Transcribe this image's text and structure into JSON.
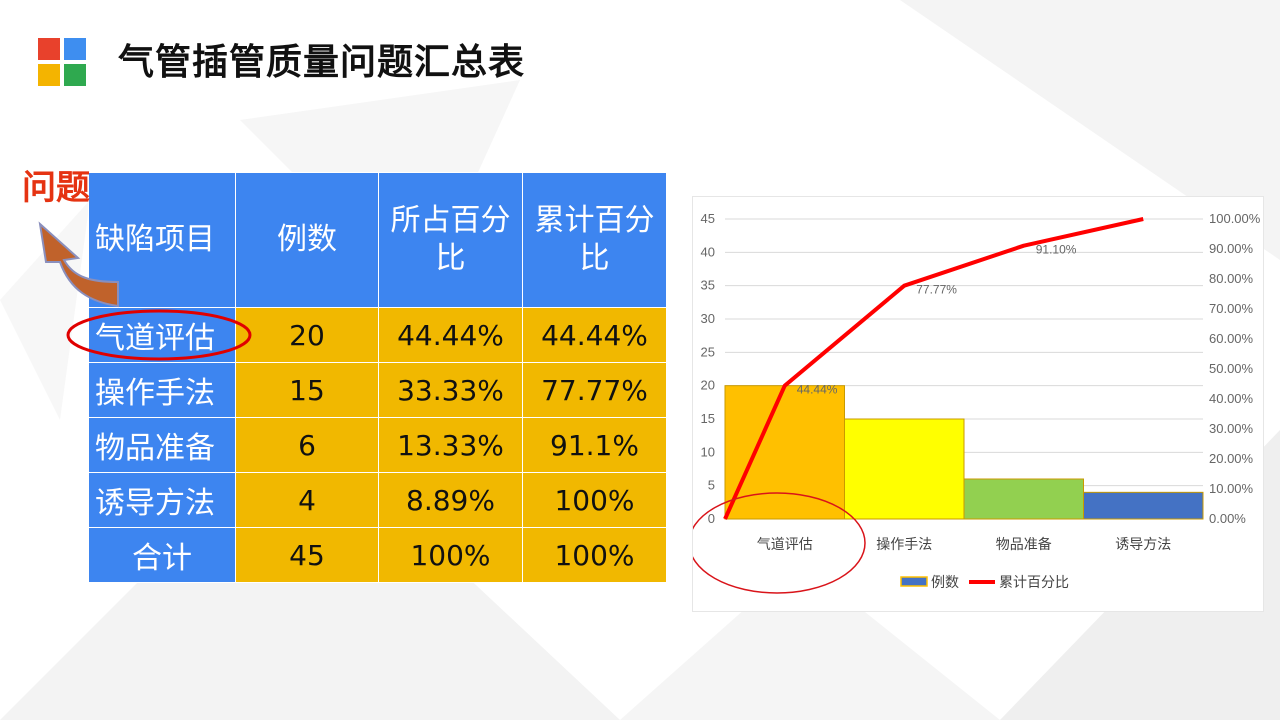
{
  "slide": {
    "title": "气管插管质量问题汇总表",
    "logo_colors": [
      "#e8412c",
      "#3e8ef0",
      "#f4b400",
      "#2fa94f"
    ],
    "problem_label": "问题",
    "accent_color": "#e53312"
  },
  "table": {
    "headers": [
      "缺陷项目",
      "例数",
      "所占百分比",
      "累计百分比"
    ],
    "rows": [
      [
        "气道评估",
        "20",
        "44.44%",
        "44.44%"
      ],
      [
        "操作手法",
        "15",
        "33.33%",
        "77.77%"
      ],
      [
        "物品准备",
        "6",
        "13.33%",
        "91.1%"
      ],
      [
        "诱导方法",
        "4",
        "8.89%",
        "100%"
      ],
      [
        "合计",
        "45",
        "100%",
        "100%"
      ]
    ],
    "header_color": "#3d85f0",
    "cell_color": "#f1b800"
  },
  "chart_data": {
    "type": "bar",
    "categories": [
      "气道评估",
      "操作手法",
      "物品准备",
      "诱导方法"
    ],
    "series": [
      {
        "name": "例数",
        "type": "bar",
        "values": [
          20,
          15,
          6,
          4
        ],
        "colors": [
          "#ffc000",
          "#ffff00",
          "#92d050",
          "#4472c4"
        ]
      },
      {
        "name": "累计百分比",
        "type": "line",
        "values": [
          0.4444,
          0.7777,
          0.911,
          1.0
        ],
        "color": "#ff0000"
      }
    ],
    "data_labels": [
      "44.44%",
      "77.77%",
      "91.10%"
    ],
    "y_left_ticks": [
      "0",
      "5",
      "10",
      "15",
      "20",
      "25",
      "30",
      "35",
      "40",
      "45"
    ],
    "y_right_ticks": [
      "0.00%",
      "10.00%",
      "20.00%",
      "30.00%",
      "40.00%",
      "50.00%",
      "60.00%",
      "70.00%",
      "80.00%",
      "90.00%",
      "100.00%"
    ],
    "ylim_left": [
      0,
      45
    ],
    "ylim_right": [
      0,
      1
    ],
    "legend_position": "bottom",
    "grid": true
  }
}
